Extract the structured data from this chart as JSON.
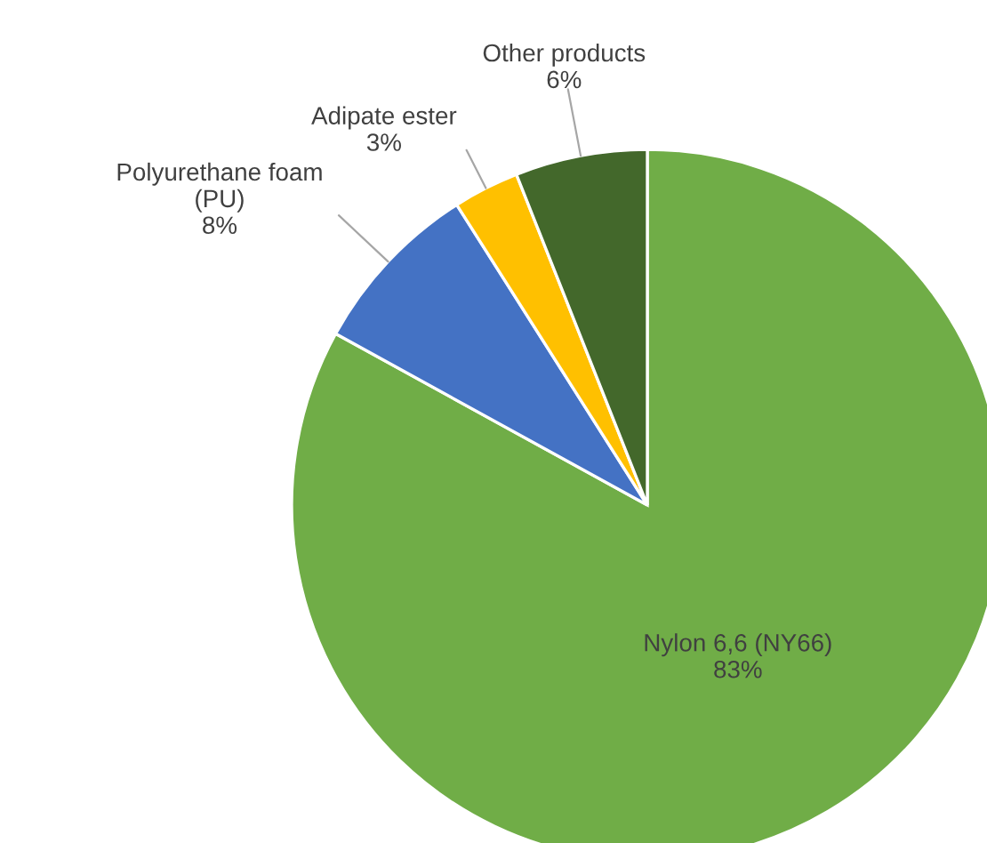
{
  "chart_data": {
    "type": "pie",
    "categories": [
      "Nylon 6,6 (NY66)",
      "Polyurethane foam\n(PU)",
      "Adipate ester",
      "Other products"
    ],
    "values": [
      83,
      8,
      3,
      6
    ],
    "colors": [
      "#70ad47",
      "#4472c4",
      "#ffc000",
      "#43682b"
    ],
    "value_labels": [
      "83%",
      "8%",
      "3%",
      "6%"
    ]
  }
}
